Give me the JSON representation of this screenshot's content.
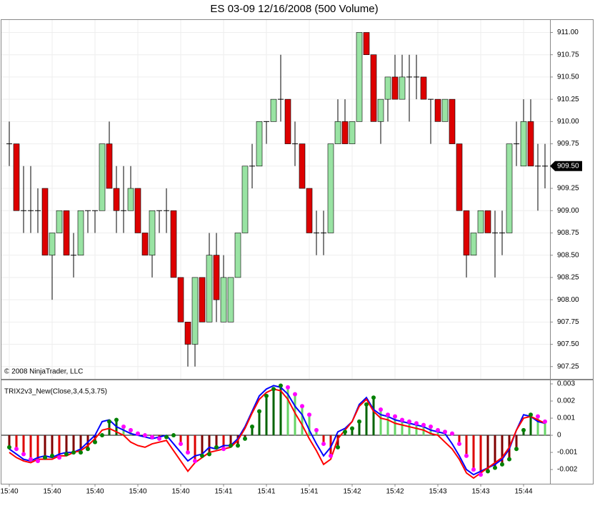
{
  "title": "ES 03-09  12/16/2008 (500 Volume)",
  "copyright": "© 2008 NinjaTrader, LLC",
  "chart_data": [
    {
      "type": "candlestick",
      "up_color": "#99e3a3",
      "down_color": "#dd0000",
      "doji_color": "#000000",
      "grid": true,
      "ylim": [
        907.12,
        911.14
      ],
      "yticks": [
        {
          "value": 907.25,
          "label": "907.25"
        },
        {
          "value": 907.5,
          "label": "907.50"
        },
        {
          "value": 907.75,
          "label": "907.75"
        },
        {
          "value": 908,
          "label": "908.00"
        },
        {
          "value": 908.25,
          "label": "908.25"
        },
        {
          "value": 908.5,
          "label": "908.50"
        },
        {
          "value": 908.75,
          "label": "908.75"
        },
        {
          "value": 909,
          "label": "909.00"
        },
        {
          "value": 909.25,
          "label": "909.25"
        },
        {
          "value": 909.5,
          "label": "909.50"
        },
        {
          "value": 909.75,
          "label": "909.75"
        },
        {
          "value": 910,
          "label": "910.00"
        },
        {
          "value": 910.25,
          "label": "910.25"
        },
        {
          "value": 910.5,
          "label": "910.50"
        },
        {
          "value": 910.75,
          "label": "910.75"
        },
        {
          "value": 911,
          "label": "911.00"
        }
      ],
      "last_price": {
        "value": 909.5,
        "label": "909.50"
      },
      "open": [
        909.75,
        909.75,
        909,
        909,
        909,
        909.25,
        908.5,
        908.75,
        909,
        908.5,
        908.5,
        909,
        909,
        909,
        909.75,
        909.25,
        909,
        909,
        909.25,
        908.75,
        908.5,
        909,
        909,
        909,
        908.25,
        907.75,
        907.5,
        908.25,
        907.75,
        908.5,
        907.75,
        907.75,
        908.25,
        908.75,
        909.5,
        909.5,
        910,
        910,
        910.25,
        910.25,
        909.75,
        909.75,
        909.25,
        908.75,
        908.75,
        908.75,
        909.75,
        910,
        909.75,
        910,
        911,
        910.75,
        910,
        910.25,
        910.5,
        910.25,
        910.5,
        910.5,
        910.5,
        910.25,
        910.25,
        910,
        910.25,
        909.75,
        909,
        908.5,
        908.75,
        909,
        908.75,
        908.75,
        908.75,
        909.75,
        909.5,
        910,
        909.5,
        909.5
      ],
      "high": [
        910,
        909.75,
        909.5,
        909.5,
        909.25,
        909.25,
        908.75,
        909,
        909,
        908.75,
        909,
        909,
        909,
        909.75,
        910,
        909.5,
        909.5,
        909.5,
        909.25,
        908.75,
        909,
        909,
        909.25,
        909,
        908.25,
        907.75,
        908.25,
        908.25,
        908.75,
        908.75,
        908.5,
        908.25,
        908.75,
        909.5,
        909.75,
        910,
        910,
        910.25,
        910.75,
        910.25,
        910,
        909.75,
        909.25,
        909,
        909,
        909.75,
        910.25,
        910.25,
        910,
        911,
        911,
        910.75,
        910.25,
        910.5,
        910.75,
        910.75,
        910.75,
        910.75,
        910.5,
        910.25,
        910.25,
        910.25,
        910.25,
        909.75,
        909,
        908.75,
        909,
        909,
        909,
        909,
        909.75,
        910,
        910.25,
        910.25,
        909.75,
        909.75
      ],
      "low": [
        909.5,
        909,
        908.75,
        908.75,
        908.75,
        908.5,
        908,
        908.75,
        908.5,
        908.25,
        908.5,
        908.75,
        908.75,
        909,
        909.25,
        908.75,
        908.75,
        909,
        908.75,
        908.5,
        908.25,
        908.75,
        908.75,
        908.25,
        907.75,
        907.25,
        907.25,
        907.75,
        907.75,
        907.75,
        907.75,
        907.75,
        908.25,
        908.75,
        909.25,
        909.5,
        909.75,
        910,
        910,
        909.75,
        909.5,
        909.25,
        908.75,
        908.5,
        908.5,
        908.75,
        909.75,
        909.75,
        909.75,
        910,
        910.75,
        910,
        909.75,
        910,
        910.25,
        910.25,
        910,
        910.25,
        910.25,
        909.75,
        910,
        910,
        909.75,
        909,
        908.25,
        908.5,
        908.75,
        908.75,
        908.25,
        908.5,
        908.75,
        909.5,
        909.5,
        909.5,
        909,
        909.25
      ],
      "close": [
        909.75,
        909,
        909,
        909,
        909,
        908.5,
        908.75,
        909,
        908.5,
        908.5,
        909,
        909,
        909,
        909.75,
        909.25,
        909,
        909,
        909.25,
        908.75,
        908.5,
        909,
        909,
        909,
        908.25,
        907.75,
        907.5,
        908.25,
        907.75,
        908.5,
        908,
        908.25,
        908.25,
        908.75,
        909.5,
        909.5,
        910,
        910,
        910.25,
        910.25,
        909.75,
        909.75,
        909.25,
        908.75,
        908.75,
        908.75,
        909.75,
        910,
        909.75,
        910,
        911,
        910.75,
        910,
        910.25,
        910.5,
        910.25,
        910.5,
        910.5,
        910.5,
        910.25,
        910.25,
        910,
        910.25,
        909.75,
        909,
        908.5,
        908.75,
        909,
        908.75,
        908.75,
        908.75,
        909.75,
        909.75,
        910,
        909.5,
        909.5,
        909.5
      ]
    },
    {
      "type": "line",
      "title": "TRIX2v3_New(Close,3,4.5,3.75)",
      "ylim": [
        -0.00283,
        0.00321
      ],
      "yticks": [
        0.003,
        0.002,
        0.001,
        0,
        -0.001,
        -0.002
      ],
      "categories": [
        "15:40",
        null,
        null,
        null,
        null,
        null,
        "15:40",
        null,
        null,
        null,
        null,
        null,
        "15:40",
        null,
        null,
        null,
        null,
        null,
        "15:40",
        null,
        null,
        null,
        null,
        null,
        "15:40",
        null,
        null,
        null,
        null,
        null,
        "15:41",
        null,
        null,
        null,
        null,
        null,
        "15:41",
        null,
        null,
        null,
        null,
        null,
        "15:41",
        null,
        null,
        null,
        null,
        null,
        "15:42",
        null,
        null,
        null,
        null,
        null,
        "15:42",
        null,
        null,
        null,
        null,
        null,
        "15:43",
        null,
        null,
        null,
        null,
        null,
        "15:43",
        null,
        null,
        null,
        null,
        null,
        "15:44",
        null,
        null,
        null
      ],
      "series": [
        {
          "color": "#0000ff",
          "values": [
            -0.0008,
            -0.0011,
            -0.0014,
            -0.0015,
            -0.0013,
            -0.0012,
            -0.0013,
            -0.0011,
            -0.001,
            -0.001,
            -0.0008,
            -0.0004,
            0,
            0.0008,
            0.0009,
            0.0005,
            0.0003,
            0.0001,
            0,
            -0.0001,
            -0.0002,
            -0.0001,
            0,
            -0.0005,
            -0.001,
            -0.0015,
            -0.0012,
            -0.0011,
            -0.0007,
            -0.0008,
            -0.0006,
            -0.0006,
            -0.0002,
            0.0005,
            0.0014,
            0.0023,
            0.0027,
            0.0029,
            0.0028,
            0.0024,
            0.0017,
            0.0012,
            0.0003,
            -0.0005,
            -0.0012,
            -0.0007,
            0.0002,
            0.0004,
            0.0008,
            0.0018,
            0.0022,
            0.0015,
            0.0012,
            0.0011,
            0.0009,
            0.0008,
            0.0007,
            0.0006,
            0.0005,
            0.0003,
            0.0002,
            0.0001,
            -0.0005,
            -0.0012,
            -0.002,
            -0.0023,
            -0.0021,
            -0.0019,
            -0.0017,
            -0.0014,
            -0.0008,
            0.0003,
            0.0012,
            0.0011,
            0.0008,
            0.0007
          ]
        },
        {
          "color": "#ff0000",
          "values": [
            -0.001,
            -0.0013,
            -0.0015,
            -0.0016,
            -0.0014,
            -0.0014,
            -0.0014,
            -0.0012,
            -0.0012,
            -0.001,
            -0.0009,
            -0.0006,
            -0.0002,
            0.0003,
            0.0004,
            0.0002,
            0,
            -0.0004,
            -0.0006,
            -0.0007,
            -0.0005,
            -0.0004,
            -0.0003,
            -0.0009,
            -0.0015,
            -0.0021,
            -0.0016,
            -0.0013,
            -0.001,
            -0.0009,
            -0.0008,
            -0.0007,
            -0.0003,
            0.0004,
            0.0013,
            0.0021,
            0.0025,
            0.0027,
            0.0026,
            0.0021,
            0.0013,
            0.0006,
            -0.0002,
            -0.0009,
            -0.0017,
            -0.0014,
            -0.0002,
            0.0003,
            0.0008,
            0.0017,
            0.0021,
            0.0014,
            0.001,
            0.0009,
            0.0007,
            0.0006,
            0.0005,
            0.0004,
            0.0003,
            0.0001,
            0,
            -0.0004,
            -0.0008,
            -0.0014,
            -0.0022,
            -0.0025,
            -0.0022,
            -0.0019,
            -0.0016,
            -0.0013,
            -0.0007,
            0.0003,
            0.001,
            0.0011,
            0.0009,
            0.0007
          ]
        }
      ],
      "histogram": {
        "rising_dot": "#008000",
        "falling_dot": "#ff00ff",
        "pos_rising": "#006400",
        "pos_falling": "#66d466",
        "neg_falling": "#dd0000",
        "neg_rising": "#800000",
        "values": [
          -0.0007,
          -0.0008,
          -0.0011,
          -0.0014,
          -0.0015,
          -0.0013,
          -0.0012,
          -0.0013,
          -0.0011,
          -0.001,
          -0.001,
          -0.0008,
          -0.0004,
          0,
          0.0008,
          0.0009,
          0.0005,
          0.0003,
          0.0001,
          0,
          -0.0001,
          -0.0002,
          -0.0001,
          0,
          -0.0005,
          -0.001,
          -0.0015,
          -0.0012,
          -0.0011,
          -0.0007,
          -0.0008,
          -0.0006,
          -0.0006,
          -0.0002,
          0.0005,
          0.0014,
          0.0023,
          0.0027,
          0.0029,
          0.0028,
          0.0024,
          0.0017,
          0.0012,
          0.0003,
          -0.0005,
          -0.0012,
          -0.0007,
          0.0002,
          0.0004,
          0.0008,
          0.0018,
          0.0022,
          0.0015,
          0.0012,
          0.0011,
          0.0009,
          0.0008,
          0.0007,
          0.0006,
          0.0005,
          0.0003,
          0.0002,
          0.0001,
          -0.0005,
          -0.0012,
          -0.002,
          -0.0023,
          -0.0021,
          -0.0019,
          -0.0017,
          -0.0014,
          -0.0008,
          0.0003,
          0.0012,
          0.0011,
          0.0008
        ]
      }
    }
  ]
}
